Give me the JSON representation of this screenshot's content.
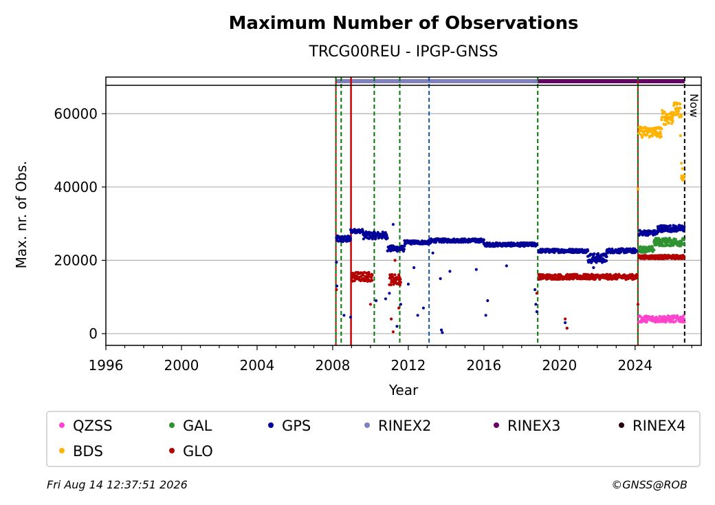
{
  "chart_data": {
    "type": "scatter",
    "title": "Maximum Number of Observations",
    "subtitle": "TRCG00REU - IPGP-GNSS",
    "xlabel": "Year",
    "ylabel": "Max. nr. of Obs.",
    "xlim": [
      1996,
      2027.5
    ],
    "ylim": [
      -3200,
      70000
    ],
    "x_ticks": [
      "1996",
      "2000",
      "2004",
      "2008",
      "2012",
      "2016",
      "2020",
      "2024"
    ],
    "y_ticks": [
      "0",
      "20000",
      "40000",
      "60000"
    ],
    "grid": "horizontal",
    "now_label": "Now",
    "now_year": 2026.62,
    "colors": {
      "QZSS": "#ff44cc",
      "GAL": "#2e9330",
      "GPS": "#000099",
      "RINEX2": "#8080c0",
      "RINEX3": "#660066",
      "RINEX4": "#220011",
      "BDS": "#ffb300",
      "GLO": "#b30000",
      "vline_green": "#007700",
      "vline_red": "#cc0000",
      "vline_blue": "#1155aa"
    },
    "rinex_bars": [
      {
        "name": "RINEX2",
        "start": 2008.15,
        "end": 2018.85
      },
      {
        "name": "RINEX3",
        "start": 2018.85,
        "end": 2026.62
      }
    ],
    "event_lines": [
      {
        "year": 2008.17,
        "style": "green-red-dash"
      },
      {
        "year": 2008.45,
        "style": "green-dash"
      },
      {
        "year": 2008.97,
        "style": "red-solid"
      },
      {
        "year": 2010.2,
        "style": "green-dash"
      },
      {
        "year": 2011.55,
        "style": "green-dash"
      },
      {
        "year": 2013.1,
        "style": "blue-dash"
      },
      {
        "year": 2018.85,
        "style": "green-dash"
      },
      {
        "year": 2024.15,
        "style": "green-red-dash"
      }
    ],
    "series": [
      {
        "name": "GPS",
        "segments": [
          {
            "from": 2008.2,
            "to": 2008.95,
            "level": 25800,
            "jitter": 900
          },
          {
            "from": 2008.95,
            "to": 2009.6,
            "level": 28000,
            "jitter": 500
          },
          {
            "from": 2009.6,
            "to": 2010.9,
            "level": 26800,
            "jitter": 1000
          },
          {
            "from": 2010.9,
            "to": 2011.8,
            "level": 23200,
            "jitter": 800
          },
          {
            "from": 2011.8,
            "to": 2013.2,
            "level": 24900,
            "jitter": 500
          },
          {
            "from": 2013.2,
            "to": 2016.0,
            "level": 25400,
            "jitter": 500
          },
          {
            "from": 2016.0,
            "to": 2018.8,
            "level": 24300,
            "jitter": 500
          },
          {
            "from": 2018.9,
            "to": 2021.5,
            "level": 22600,
            "jitter": 500
          },
          {
            "from": 2021.5,
            "to": 2022.5,
            "level": 20600,
            "jitter": 1300
          },
          {
            "from": 2022.5,
            "to": 2024.1,
            "level": 22600,
            "jitter": 600
          },
          {
            "from": 2024.2,
            "to": 2025.2,
            "level": 27500,
            "jitter": 700
          },
          {
            "from": 2025.2,
            "to": 2026.6,
            "level": 28700,
            "jitter": 900
          }
        ],
        "outliers": [
          [
            2008.2,
            19500
          ],
          [
            2008.22,
            13000
          ],
          [
            2008.6,
            5000
          ],
          [
            2008.95,
            4500
          ],
          [
            2010.3,
            9000
          ],
          [
            2010.8,
            9500
          ],
          [
            2011.0,
            11000
          ],
          [
            2011.2,
            29800
          ],
          [
            2011.4,
            2000
          ],
          [
            2011.6,
            8000
          ],
          [
            2012.0,
            13500
          ],
          [
            2012.3,
            18000
          ],
          [
            2012.5,
            5000
          ],
          [
            2012.8,
            7000
          ],
          [
            2013.3,
            22000
          ],
          [
            2013.7,
            15000
          ],
          [
            2013.75,
            1000
          ],
          [
            2013.8,
            300
          ],
          [
            2014.2,
            17000
          ],
          [
            2015.6,
            17500
          ],
          [
            2016.1,
            5000
          ],
          [
            2016.2,
            9000
          ],
          [
            2017.2,
            18500
          ],
          [
            2018.7,
            12000
          ],
          [
            2018.75,
            8000
          ],
          [
            2018.8,
            6000
          ],
          [
            2020.3,
            3000
          ],
          [
            2020.4,
            1500
          ],
          [
            2021.8,
            18000
          ]
        ]
      },
      {
        "name": "GLO",
        "segments": [
          {
            "from": 2009.0,
            "to": 2010.1,
            "level": 15500,
            "jitter": 1300
          },
          {
            "from": 2011.0,
            "to": 2011.6,
            "level": 14800,
            "jitter": 1500
          },
          {
            "from": 2018.9,
            "to": 2024.1,
            "level": 15500,
            "jitter": 700
          },
          {
            "from": 2024.2,
            "to": 2026.6,
            "level": 20900,
            "jitter": 500
          }
        ],
        "outliers": [
          [
            2008.2,
            12000
          ],
          [
            2010.0,
            8000
          ],
          [
            2011.1,
            4000
          ],
          [
            2011.2,
            500
          ],
          [
            2011.3,
            20000
          ],
          [
            2011.5,
            7000
          ],
          [
            2018.8,
            11000
          ],
          [
            2020.3,
            4000
          ],
          [
            2020.4,
            1500
          ],
          [
            2024.15,
            8000
          ]
        ]
      },
      {
        "name": "GAL",
        "segments": [
          {
            "from": 2024.2,
            "to": 2025.0,
            "level": 23000,
            "jitter": 800
          },
          {
            "from": 2025.0,
            "to": 2026.6,
            "level": 25000,
            "jitter": 1100
          }
        ],
        "outliers": []
      },
      {
        "name": "BDS",
        "segments": [
          {
            "from": 2024.2,
            "to": 2025.4,
            "level": 55000,
            "jitter": 1500
          },
          {
            "from": 2025.4,
            "to": 2026.0,
            "level": 59000,
            "jitter": 2000
          },
          {
            "from": 2026.0,
            "to": 2026.45,
            "level": 61000,
            "jitter": 2000
          },
          {
            "from": 2026.45,
            "to": 2026.6,
            "level": 42500,
            "jitter": 800
          }
        ],
        "outliers": [
          [
            2024.15,
            39500
          ],
          [
            2026.4,
            54000
          ],
          [
            2026.45,
            46500
          ],
          [
            2026.5,
            45000
          ]
        ]
      },
      {
        "name": "QZSS",
        "segments": [
          {
            "from": 2024.2,
            "to": 2026.6,
            "level": 4000,
            "jitter": 900
          }
        ],
        "outliers": []
      }
    ],
    "legend": {
      "placement": "bottom",
      "entries": [
        {
          "label": "QZSS",
          "color": "#ff44cc"
        },
        {
          "label": "GAL",
          "color": "#2e9330"
        },
        {
          "label": "GPS",
          "color": "#000099"
        },
        {
          "label": "RINEX2",
          "color": "#8080c0"
        },
        {
          "label": "RINEX3",
          "color": "#660066"
        },
        {
          "label": "RINEX4",
          "color": "#220011"
        },
        {
          "label": "BDS",
          "color": "#ffb300"
        },
        {
          "label": "GLO",
          "color": "#b30000"
        }
      ]
    }
  },
  "footer": {
    "timestamp": "Fri Aug 14 12:37:51 2026",
    "copyright": "©GNSS@ROB"
  }
}
